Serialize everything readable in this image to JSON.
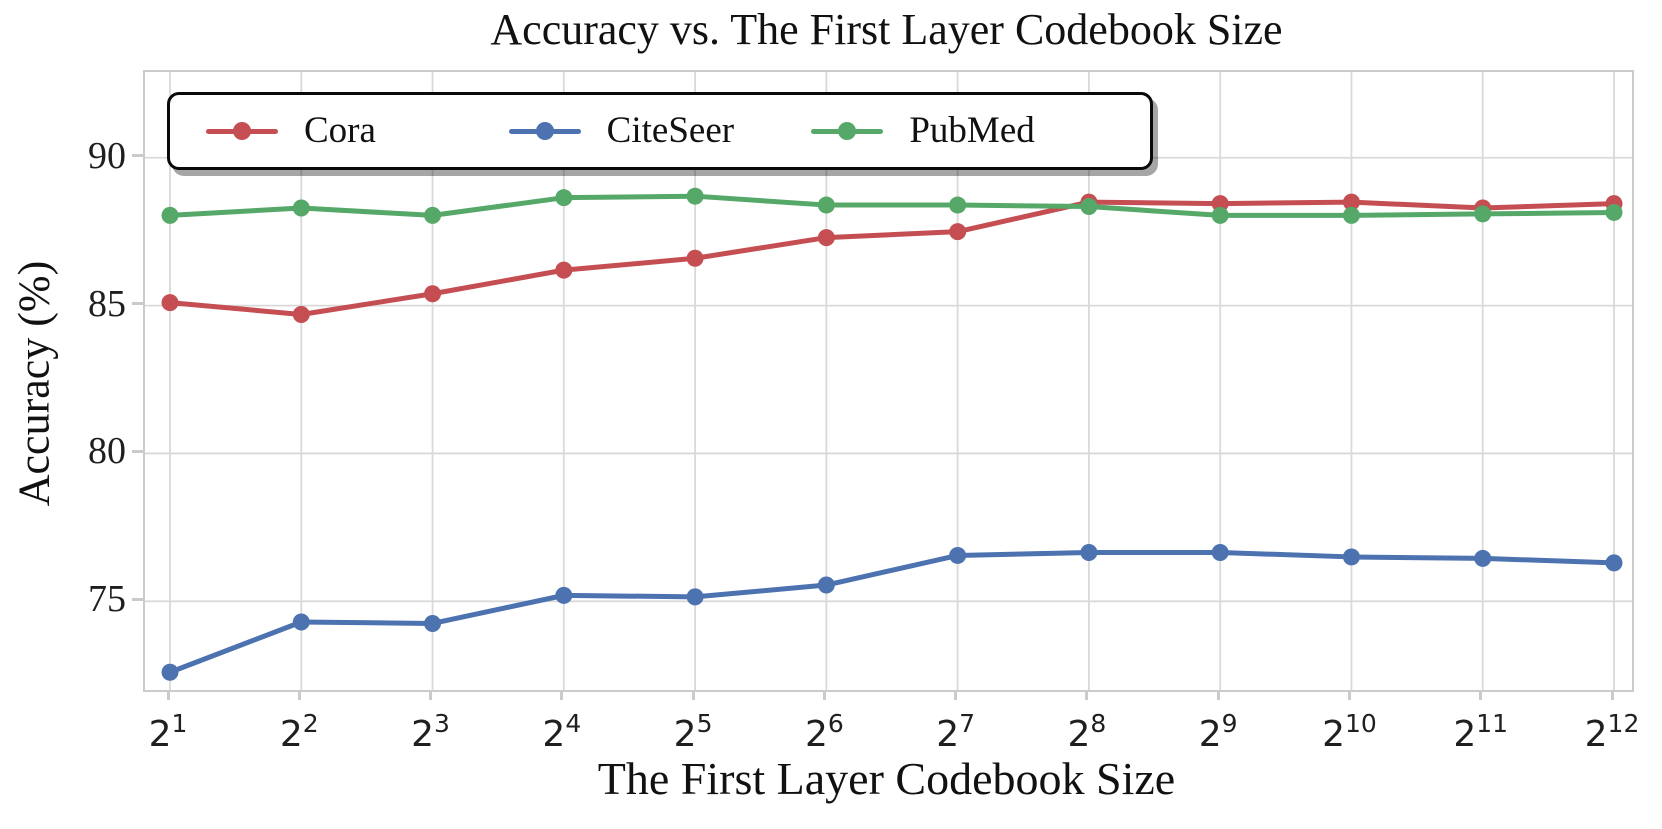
{
  "chart_data": {
    "type": "line",
    "title": "Accuracy vs. The First Layer Codebook Size",
    "xlabel": "The First Layer Codebook Size",
    "ylabel": "Accuracy (%)",
    "x_tick_base": "2",
    "x_tick_exponents": [
      "1",
      "2",
      "3",
      "4",
      "5",
      "6",
      "7",
      "8",
      "9",
      "10",
      "11",
      "12"
    ],
    "yticks": [
      90,
      85,
      80,
      75
    ],
    "ylim": [
      72.0,
      92.9
    ],
    "grid": true,
    "legend_position": "upper-left-inside",
    "grid_color": "#d9d9d9",
    "spine_color": "#cbcbcb",
    "series": [
      {
        "name": "Cora",
        "color": "#c44e52",
        "values": [
          85.1,
          84.7,
          85.4,
          86.2,
          86.6,
          87.3,
          87.5,
          88.5,
          88.45,
          88.5,
          88.3,
          88.45
        ]
      },
      {
        "name": "CiteSeer",
        "color": "#4c72b0",
        "values": [
          72.6,
          74.3,
          74.25,
          75.2,
          75.15,
          75.55,
          76.55,
          76.65,
          76.65,
          76.5,
          76.45,
          76.3
        ]
      },
      {
        "name": "PubMed",
        "color": "#55a868",
        "values": [
          88.05,
          88.3,
          88.05,
          88.65,
          88.7,
          88.4,
          88.4,
          88.35,
          88.05,
          88.05,
          88.1,
          88.15
        ]
      }
    ]
  }
}
